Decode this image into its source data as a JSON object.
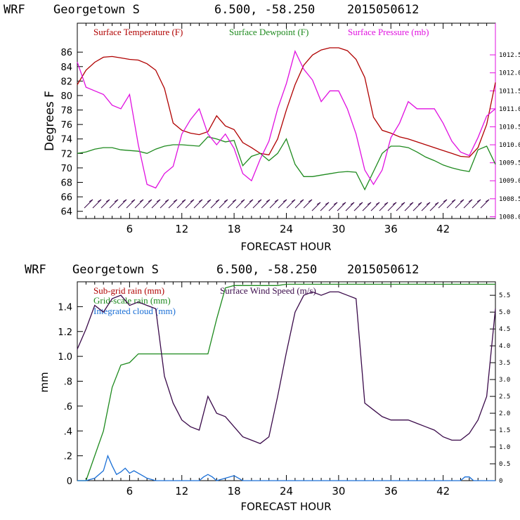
{
  "chart_data": [
    {
      "type": "line",
      "header": {
        "model": "WRF",
        "location": "Georgetown S",
        "coords": "6.500, -58.250",
        "init": "2015050612"
      },
      "xlabel": "FORECAST HOUR",
      "ylabel": "Degrees F",
      "xlim": [
        0,
        48
      ],
      "x_ticks": [
        "6",
        "12",
        "18",
        "24",
        "30",
        "36",
        "42"
      ],
      "ylim": [
        63,
        90
      ],
      "y_ticks": [
        "64",
        "66",
        "68",
        "70",
        "72",
        "74",
        "76",
        "78",
        "80",
        "82",
        "84",
        "86"
      ],
      "y2lim": [
        1007.95,
        1013.38
      ],
      "y2_ticks": [
        "1008.0",
        "1008.5",
        "1009.0",
        "1009.5",
        "1010.0",
        "1010.5",
        "1011.0",
        "1011.5",
        "1012.0",
        "1012.5"
      ],
      "legend": [
        {
          "label": "Surface Temperature (F)",
          "color": "#b00000"
        },
        {
          "label": "Surface Dewpoint (F)",
          "color": "#1e8a1e"
        },
        {
          "label": "Surface Pressure (mb)",
          "color": "#e010e0"
        }
      ],
      "series": [
        {
          "name": "Surface Temperature (F)",
          "color": "#b00000",
          "axis": "left",
          "x": [
            0,
            1,
            2,
            3,
            4,
            5,
            6,
            7,
            8,
            9,
            10,
            11,
            12,
            13,
            14,
            15,
            16,
            17,
            18,
            19,
            20,
            21,
            22,
            23,
            24,
            25,
            26,
            27,
            28,
            29,
            30,
            31,
            32,
            33,
            34,
            35,
            36,
            37,
            38,
            39,
            40,
            41,
            42,
            43,
            44,
            45,
            46,
            47,
            48
          ],
          "y": [
            81.5,
            83.5,
            84.6,
            85.3,
            85.4,
            85.2,
            85.0,
            84.9,
            84.4,
            83.5,
            81.0,
            76.2,
            75.2,
            74.8,
            74.6,
            75.0,
            77.2,
            75.8,
            75.3,
            73.5,
            72.8,
            72.0,
            71.8,
            74.0,
            78.0,
            81.5,
            84.2,
            85.6,
            86.3,
            86.6,
            86.6,
            86.2,
            85.0,
            82.5,
            77.0,
            75.2,
            74.8,
            74.3,
            74.0,
            73.6,
            73.2,
            72.8,
            72.4,
            72.0,
            71.6,
            71.5,
            72.8,
            76.0,
            81.8
          ]
        },
        {
          "name": "Surface Dewpoint (F)",
          "color": "#1e8a1e",
          "axis": "left",
          "x": [
            0,
            1,
            2,
            3,
            4,
            5,
            6,
            7,
            8,
            9,
            10,
            11,
            12,
            13,
            14,
            15,
            16,
            17,
            18,
            19,
            20,
            21,
            22,
            23,
            24,
            25,
            26,
            27,
            28,
            29,
            30,
            31,
            32,
            33,
            34,
            35,
            36,
            37,
            38,
            39,
            40,
            41,
            42,
            43,
            44,
            45,
            46,
            47,
            48
          ],
          "y": [
            72.0,
            72.2,
            72.6,
            72.8,
            72.8,
            72.5,
            72.4,
            72.3,
            72.0,
            72.6,
            73.0,
            73.2,
            73.2,
            73.1,
            73.0,
            74.3,
            74.0,
            73.6,
            73.8,
            70.3,
            71.6,
            72.0,
            71.0,
            72.0,
            74.0,
            70.5,
            68.8,
            68.8,
            69.0,
            69.2,
            69.4,
            69.5,
            69.4,
            67.0,
            69.5,
            72.0,
            73.0,
            73.0,
            72.8,
            72.2,
            71.5,
            71.0,
            70.4,
            70.0,
            69.7,
            69.5,
            72.5,
            73.0,
            70.5
          ]
        },
        {
          "name": "Surface Pressure (mb)",
          "color": "#e010e0",
          "axis": "right",
          "x": [
            0,
            1,
            2,
            3,
            4,
            5,
            6,
            7,
            8,
            9,
            10,
            11,
            12,
            13,
            14,
            15,
            16,
            17,
            18,
            19,
            20,
            21,
            22,
            23,
            24,
            25,
            26,
            27,
            28,
            29,
            30,
            31,
            32,
            33,
            34,
            35,
            36,
            37,
            38,
            39,
            40,
            41,
            42,
            43,
            44,
            45,
            46,
            47,
            48
          ],
          "y": [
            1012.3,
            1011.6,
            1011.5,
            1011.4,
            1011.1,
            1011.0,
            1011.4,
            1010.0,
            1008.9,
            1008.8,
            1009.2,
            1009.4,
            1010.3,
            1010.7,
            1011.0,
            1010.3,
            1010.0,
            1010.3,
            1009.9,
            1009.2,
            1009.0,
            1009.6,
            1010.1,
            1011.0,
            1011.7,
            1012.6,
            1012.1,
            1011.8,
            1011.2,
            1011.5,
            1011.5,
            1011.0,
            1010.3,
            1009.3,
            1008.9,
            1009.3,
            1010.2,
            1010.6,
            1011.2,
            1011.0,
            1011.0,
            1011.0,
            1010.6,
            1010.1,
            1009.8,
            1009.7,
            1010.2,
            1010.8,
            1011.0
          ]
        }
      ]
    },
    {
      "type": "line",
      "header": {
        "model": "WRF",
        "location": "Georgetown S",
        "coords": "6.500, -58.250",
        "init": "2015050612"
      },
      "xlabel": "FORECAST HOUR",
      "ylabel": "mm",
      "xlim": [
        0,
        48
      ],
      "x_ticks": [
        "6",
        "12",
        "18",
        "24",
        "30",
        "36",
        "42"
      ],
      "ylim": [
        0,
        1.6
      ],
      "y_ticks": [
        "0",
        ".2",
        ".4",
        ".6",
        ".8",
        "1.0",
        "1.2",
        "1.4"
      ],
      "y2lim": [
        0,
        5.9
      ],
      "y2_ticks": [
        "0",
        "0.5",
        "1.0",
        "1.5",
        "2.0",
        "2.5",
        "3.0",
        "3.5",
        "4.0",
        "4.5",
        "5.0",
        "5.5"
      ],
      "legend": [
        {
          "label": "Sub-grid rain (mm)",
          "color": "#b00000"
        },
        {
          "label": "Grid-scale rain (mm)",
          "color": "#1e8a1e"
        },
        {
          "label": "Integrated cloud (mm)",
          "color": "#1a6fd6"
        },
        {
          "label": "Surface Wind Speed (m/s)",
          "color": "#3a0a4a"
        }
      ],
      "series": [
        {
          "name": "Grid-scale rain (mm)",
          "color": "#1e8a1e",
          "axis": "left",
          "x": [
            0,
            1,
            2,
            3,
            4,
            5,
            6,
            7,
            8,
            9,
            10,
            11,
            12,
            13,
            14,
            15,
            16,
            17,
            18,
            19,
            20,
            21,
            22,
            23,
            24,
            25,
            26,
            27,
            28,
            29,
            30,
            31,
            32,
            33,
            34,
            35,
            36,
            37,
            38,
            39,
            40,
            41,
            42,
            43,
            44,
            45,
            46,
            47,
            48
          ],
          "y": [
            0,
            0,
            0.2,
            0.4,
            0.75,
            0.93,
            0.95,
            1.02,
            1.02,
            1.02,
            1.02,
            1.02,
            1.02,
            1.02,
            1.02,
            1.02,
            1.3,
            1.55,
            1.57,
            1.57,
            1.57,
            1.57,
            1.57,
            1.57,
            1.58,
            1.58,
            1.58,
            1.58,
            1.58,
            1.58,
            1.58,
            1.58,
            1.58,
            1.58,
            1.58,
            1.58,
            1.58,
            1.58,
            1.58,
            1.58,
            1.58,
            1.58,
            1.58,
            1.58,
            1.58,
            1.58,
            1.58,
            1.58,
            1.58
          ]
        },
        {
          "name": "Integrated cloud (mm)",
          "color": "#1a6fd6",
          "axis": "left",
          "x": [
            0,
            1,
            2,
            3,
            3.5,
            4,
            4.5,
            5,
            5.5,
            6,
            6.5,
            7,
            7.5,
            8,
            9,
            14,
            14.5,
            15,
            15.5,
            16,
            17,
            18,
            19,
            44,
            44.5,
            45,
            45.5,
            46,
            48
          ],
          "y": [
            0,
            0,
            0.02,
            0.08,
            0.2,
            0.12,
            0.05,
            0.07,
            0.1,
            0.06,
            0.08,
            0.06,
            0.04,
            0.02,
            0,
            0,
            0.03,
            0.05,
            0.03,
            0,
            0.02,
            0.04,
            0,
            0,
            0.03,
            0.03,
            0,
            0,
            0
          ]
        },
        {
          "name": "Surface Wind Speed (m/s)",
          "color": "#3a0a4a",
          "axis": "right",
          "x": [
            0,
            1,
            2,
            3,
            4,
            5,
            6,
            7,
            8,
            9,
            10,
            11,
            12,
            13,
            14,
            15,
            16,
            17,
            18,
            19,
            20,
            21,
            22,
            23,
            24,
            25,
            26,
            27,
            28,
            29,
            30,
            31,
            32,
            33,
            34,
            35,
            36,
            37,
            38,
            39,
            40,
            41,
            42,
            43,
            44,
            45,
            46,
            47,
            48
          ],
          "y": [
            3.9,
            4.5,
            5.2,
            5.0,
            5.4,
            5.5,
            5.2,
            5.3,
            5.2,
            5.1,
            3.1,
            2.3,
            1.8,
            1.6,
            1.5,
            2.5,
            2.0,
            1.9,
            1.6,
            1.3,
            1.2,
            1.1,
            1.3,
            2.5,
            3.8,
            5.0,
            5.5,
            5.6,
            5.5,
            5.6,
            5.6,
            5.5,
            5.4,
            2.3,
            2.1,
            1.9,
            1.8,
            1.8,
            1.8,
            1.7,
            1.6,
            1.5,
            1.3,
            1.2,
            1.2,
            1.4,
            1.8,
            2.5,
            5.1
          ]
        }
      ]
    }
  ]
}
